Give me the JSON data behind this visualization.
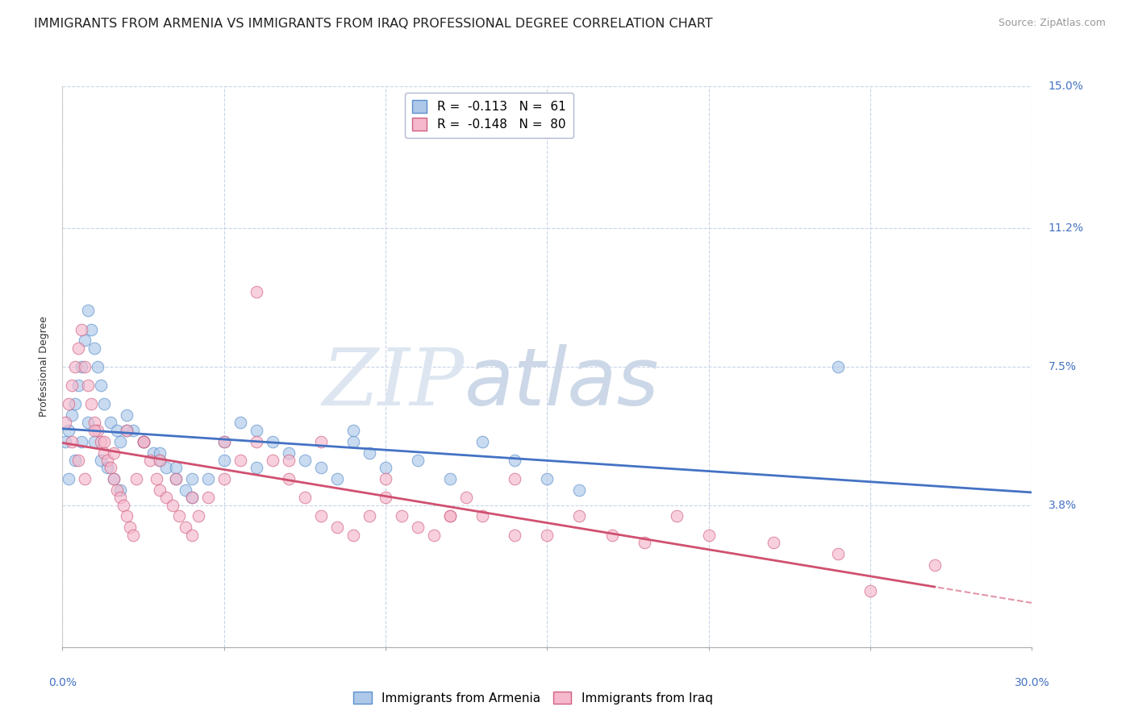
{
  "title": "IMMIGRANTS FROM ARMENIA VS IMMIGRANTS FROM IRAQ PROFESSIONAL DEGREE CORRELATION CHART",
  "source": "Source: ZipAtlas.com",
  "ylabel": "Professional Degree",
  "xlim": [
    0.0,
    30.0
  ],
  "ylim": [
    0.0,
    15.0
  ],
  "yticks": [
    3.8,
    7.5,
    11.2,
    15.0
  ],
  "xticks": [
    0.0,
    5.0,
    10.0,
    15.0,
    20.0,
    25.0,
    30.0
  ],
  "series": [
    {
      "name": "Immigrants from Armenia",
      "R": -0.113,
      "N": 61,
      "color": "#adc8e8",
      "edge_color": "#5b8fcc",
      "line_color": "#4472c4",
      "x": [
        0.1,
        0.2,
        0.3,
        0.4,
        0.5,
        0.6,
        0.7,
        0.8,
        0.9,
        1.0,
        1.1,
        1.2,
        1.3,
        1.5,
        1.7,
        1.8,
        2.0,
        2.2,
        2.5,
        2.8,
        3.0,
        3.2,
        3.5,
        3.8,
        4.0,
        4.5,
        5.0,
        5.5,
        6.0,
        6.5,
        7.0,
        7.5,
        8.0,
        8.5,
        9.0,
        9.5,
        10.0,
        11.0,
        12.0,
        13.0,
        14.0,
        15.0,
        16.0,
        0.2,
        0.4,
        0.6,
        0.8,
        1.0,
        1.2,
        1.4,
        1.6,
        1.8,
        2.0,
        2.5,
        3.0,
        3.5,
        4.0,
        5.0,
        6.0,
        24.0,
        9.0
      ],
      "y": [
        5.5,
        5.8,
        6.2,
        6.5,
        7.0,
        7.5,
        8.2,
        9.0,
        8.5,
        8.0,
        7.5,
        7.0,
        6.5,
        6.0,
        5.8,
        5.5,
        6.2,
        5.8,
        5.5,
        5.2,
        5.0,
        4.8,
        4.5,
        4.2,
        4.0,
        4.5,
        5.5,
        6.0,
        5.8,
        5.5,
        5.2,
        5.0,
        4.8,
        4.5,
        5.5,
        5.2,
        4.8,
        5.0,
        4.5,
        5.5,
        5.0,
        4.5,
        4.2,
        4.5,
        5.0,
        5.5,
        6.0,
        5.5,
        5.0,
        4.8,
        4.5,
        4.2,
        5.8,
        5.5,
        5.2,
        4.8,
        4.5,
        5.0,
        4.8,
        7.5,
        5.8
      ]
    },
    {
      "name": "Immigrants from Iraq",
      "R": -0.148,
      "N": 80,
      "color": "#f5b8cc",
      "edge_color": "#d06080",
      "line_color": "#d05070",
      "x": [
        0.1,
        0.2,
        0.3,
        0.4,
        0.5,
        0.6,
        0.7,
        0.8,
        0.9,
        1.0,
        1.1,
        1.2,
        1.3,
        1.4,
        1.5,
        1.6,
        1.7,
        1.8,
        1.9,
        2.0,
        2.1,
        2.2,
        2.3,
        2.5,
        2.7,
        2.9,
        3.0,
        3.2,
        3.4,
        3.6,
        3.8,
        4.0,
        4.2,
        4.5,
        5.0,
        5.5,
        6.0,
        6.5,
        7.0,
        7.5,
        8.0,
        8.5,
        9.0,
        9.5,
        10.0,
        10.5,
        11.0,
        11.5,
        12.0,
        12.5,
        13.0,
        14.0,
        15.0,
        16.0,
        17.0,
        18.0,
        19.0,
        20.0,
        22.0,
        24.0,
        0.3,
        0.5,
        0.7,
        1.0,
        1.3,
        1.6,
        2.0,
        2.5,
        3.0,
        3.5,
        4.0,
        5.0,
        6.0,
        7.0,
        8.0,
        10.0,
        12.0,
        14.0,
        25.0,
        27.0
      ],
      "y": [
        6.0,
        6.5,
        7.0,
        7.5,
        8.0,
        8.5,
        7.5,
        7.0,
        6.5,
        6.0,
        5.8,
        5.5,
        5.2,
        5.0,
        4.8,
        4.5,
        4.2,
        4.0,
        3.8,
        3.5,
        3.2,
        3.0,
        4.5,
        5.5,
        5.0,
        4.5,
        4.2,
        4.0,
        3.8,
        3.5,
        3.2,
        3.0,
        3.5,
        4.0,
        4.5,
        5.0,
        5.5,
        5.0,
        4.5,
        4.0,
        3.5,
        3.2,
        3.0,
        3.5,
        4.0,
        3.5,
        3.2,
        3.0,
        3.5,
        4.0,
        3.5,
        4.5,
        3.0,
        3.5,
        3.0,
        2.8,
        3.5,
        3.0,
        2.8,
        2.5,
        5.5,
        5.0,
        4.5,
        5.8,
        5.5,
        5.2,
        5.8,
        5.5,
        5.0,
        4.5,
        4.0,
        5.5,
        9.5,
        5.0,
        5.5,
        4.5,
        3.5,
        3.0,
        1.5,
        2.2
      ]
    }
  ],
  "watermark_zip": "ZIP",
  "watermark_atlas": "atlas",
  "background_color": "#ffffff",
  "grid_color": "#c8d4e8",
  "title_fontsize": 11.5,
  "source_fontsize": 9,
  "axis_label_fontsize": 9,
  "tick_fontsize": 10,
  "legend_fontsize": 11,
  "scatter_size": 110,
  "scatter_alpha": 0.65
}
